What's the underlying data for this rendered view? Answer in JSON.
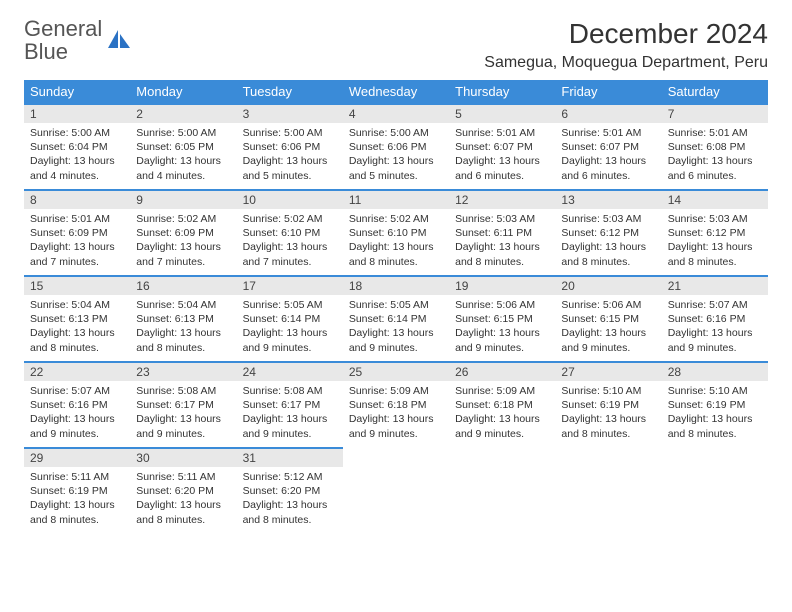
{
  "logo": {
    "part1": "General",
    "part2": "Blue"
  },
  "title": "December 2024",
  "location": "Samegua, Moquegua Department, Peru",
  "colors": {
    "header_bg": "#3a8bd8",
    "header_text": "#ffffff",
    "accent": "#2b72c4",
    "daynum_bg": "#e8e8e8",
    "border": "#3a8bd8",
    "text": "#333333"
  },
  "weekdays": [
    "Sunday",
    "Monday",
    "Tuesday",
    "Wednesday",
    "Thursday",
    "Friday",
    "Saturday"
  ],
  "weeks": [
    [
      {
        "n": "1",
        "sr": "Sunrise: 5:00 AM",
        "ss": "Sunset: 6:04 PM",
        "dl": "Daylight: 13 hours and 4 minutes."
      },
      {
        "n": "2",
        "sr": "Sunrise: 5:00 AM",
        "ss": "Sunset: 6:05 PM",
        "dl": "Daylight: 13 hours and 4 minutes."
      },
      {
        "n": "3",
        "sr": "Sunrise: 5:00 AM",
        "ss": "Sunset: 6:06 PM",
        "dl": "Daylight: 13 hours and 5 minutes."
      },
      {
        "n": "4",
        "sr": "Sunrise: 5:00 AM",
        "ss": "Sunset: 6:06 PM",
        "dl": "Daylight: 13 hours and 5 minutes."
      },
      {
        "n": "5",
        "sr": "Sunrise: 5:01 AM",
        "ss": "Sunset: 6:07 PM",
        "dl": "Daylight: 13 hours and 6 minutes."
      },
      {
        "n": "6",
        "sr": "Sunrise: 5:01 AM",
        "ss": "Sunset: 6:07 PM",
        "dl": "Daylight: 13 hours and 6 minutes."
      },
      {
        "n": "7",
        "sr": "Sunrise: 5:01 AM",
        "ss": "Sunset: 6:08 PM",
        "dl": "Daylight: 13 hours and 6 minutes."
      }
    ],
    [
      {
        "n": "8",
        "sr": "Sunrise: 5:01 AM",
        "ss": "Sunset: 6:09 PM",
        "dl": "Daylight: 13 hours and 7 minutes."
      },
      {
        "n": "9",
        "sr": "Sunrise: 5:02 AM",
        "ss": "Sunset: 6:09 PM",
        "dl": "Daylight: 13 hours and 7 minutes."
      },
      {
        "n": "10",
        "sr": "Sunrise: 5:02 AM",
        "ss": "Sunset: 6:10 PM",
        "dl": "Daylight: 13 hours and 7 minutes."
      },
      {
        "n": "11",
        "sr": "Sunrise: 5:02 AM",
        "ss": "Sunset: 6:10 PM",
        "dl": "Daylight: 13 hours and 8 minutes."
      },
      {
        "n": "12",
        "sr": "Sunrise: 5:03 AM",
        "ss": "Sunset: 6:11 PM",
        "dl": "Daylight: 13 hours and 8 minutes."
      },
      {
        "n": "13",
        "sr": "Sunrise: 5:03 AM",
        "ss": "Sunset: 6:12 PM",
        "dl": "Daylight: 13 hours and 8 minutes."
      },
      {
        "n": "14",
        "sr": "Sunrise: 5:03 AM",
        "ss": "Sunset: 6:12 PM",
        "dl": "Daylight: 13 hours and 8 minutes."
      }
    ],
    [
      {
        "n": "15",
        "sr": "Sunrise: 5:04 AM",
        "ss": "Sunset: 6:13 PM",
        "dl": "Daylight: 13 hours and 8 minutes."
      },
      {
        "n": "16",
        "sr": "Sunrise: 5:04 AM",
        "ss": "Sunset: 6:13 PM",
        "dl": "Daylight: 13 hours and 8 minutes."
      },
      {
        "n": "17",
        "sr": "Sunrise: 5:05 AM",
        "ss": "Sunset: 6:14 PM",
        "dl": "Daylight: 13 hours and 9 minutes."
      },
      {
        "n": "18",
        "sr": "Sunrise: 5:05 AM",
        "ss": "Sunset: 6:14 PM",
        "dl": "Daylight: 13 hours and 9 minutes."
      },
      {
        "n": "19",
        "sr": "Sunrise: 5:06 AM",
        "ss": "Sunset: 6:15 PM",
        "dl": "Daylight: 13 hours and 9 minutes."
      },
      {
        "n": "20",
        "sr": "Sunrise: 5:06 AM",
        "ss": "Sunset: 6:15 PM",
        "dl": "Daylight: 13 hours and 9 minutes."
      },
      {
        "n": "21",
        "sr": "Sunrise: 5:07 AM",
        "ss": "Sunset: 6:16 PM",
        "dl": "Daylight: 13 hours and 9 minutes."
      }
    ],
    [
      {
        "n": "22",
        "sr": "Sunrise: 5:07 AM",
        "ss": "Sunset: 6:16 PM",
        "dl": "Daylight: 13 hours and 9 minutes."
      },
      {
        "n": "23",
        "sr": "Sunrise: 5:08 AM",
        "ss": "Sunset: 6:17 PM",
        "dl": "Daylight: 13 hours and 9 minutes."
      },
      {
        "n": "24",
        "sr": "Sunrise: 5:08 AM",
        "ss": "Sunset: 6:17 PM",
        "dl": "Daylight: 13 hours and 9 minutes."
      },
      {
        "n": "25",
        "sr": "Sunrise: 5:09 AM",
        "ss": "Sunset: 6:18 PM",
        "dl": "Daylight: 13 hours and 9 minutes."
      },
      {
        "n": "26",
        "sr": "Sunrise: 5:09 AM",
        "ss": "Sunset: 6:18 PM",
        "dl": "Daylight: 13 hours and 9 minutes."
      },
      {
        "n": "27",
        "sr": "Sunrise: 5:10 AM",
        "ss": "Sunset: 6:19 PM",
        "dl": "Daylight: 13 hours and 8 minutes."
      },
      {
        "n": "28",
        "sr": "Sunrise: 5:10 AM",
        "ss": "Sunset: 6:19 PM",
        "dl": "Daylight: 13 hours and 8 minutes."
      }
    ],
    [
      {
        "n": "29",
        "sr": "Sunrise: 5:11 AM",
        "ss": "Sunset: 6:19 PM",
        "dl": "Daylight: 13 hours and 8 minutes."
      },
      {
        "n": "30",
        "sr": "Sunrise: 5:11 AM",
        "ss": "Sunset: 6:20 PM",
        "dl": "Daylight: 13 hours and 8 minutes."
      },
      {
        "n": "31",
        "sr": "Sunrise: 5:12 AM",
        "ss": "Sunset: 6:20 PM",
        "dl": "Daylight: 13 hours and 8 minutes."
      },
      null,
      null,
      null,
      null
    ]
  ]
}
